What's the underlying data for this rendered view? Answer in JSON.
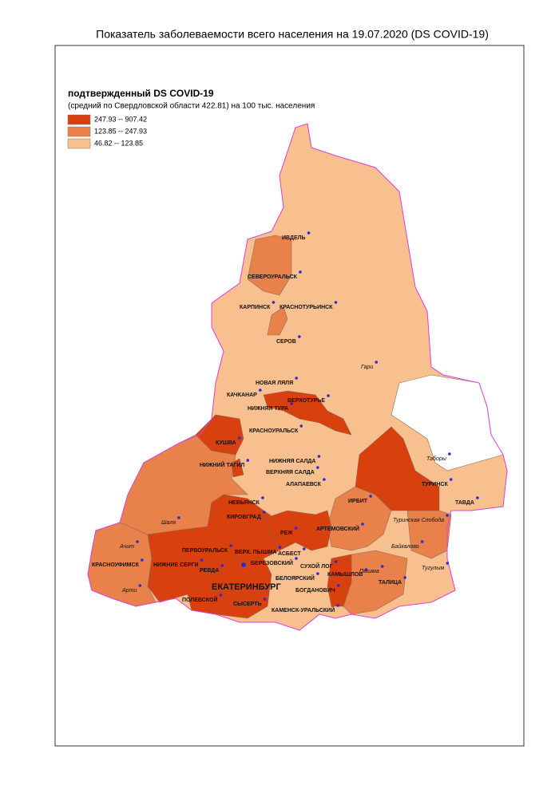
{
  "header": {
    "title": "Показатель заболеваемости всего населения  на 19.07.2020 (DS  COVID-19)"
  },
  "legend": {
    "title": "подтвержденный DS  COVID-19",
    "subtitle": "(средний по Свердловской области 422.81) на 100 тыс. населения",
    "items": [
      {
        "label": "247.93 -- 907.42",
        "color": "#d8400e"
      },
      {
        "label": "123.85 -- 247.93",
        "color": "#e8824a"
      },
      {
        "label": "46.82 -- 123.85",
        "color": "#f9c08f"
      }
    ]
  },
  "places": [
    "ИВДЕЛЬ",
    "СЕВЕРОУРАЛЬСК",
    "КАРПИНСК",
    "КРАСНОТУРЬИНСК",
    "СЕРОВ",
    "Гари",
    "НОВАЯ ЛЯЛЯ",
    "ВЕРХОТУРЬЕ",
    "КАЧКАНАР",
    "НИЖНЯЯ ТУРА",
    "КРАСНОУРАЛЬСК",
    "КУШВА",
    "НИЖНИЙ ТАГИЛ",
    "НИЖНЯЯ САЛДА",
    "ВЕРХНЯЯ САЛДА",
    "Таборы",
    "ТУРИНСК",
    "АЛАПАЕВСК",
    "ТАВДА",
    "НЕВЬЯНСК",
    "КИРОВГРАД",
    "ИРБИТ",
    "Шаля",
    "Туринская Слобода",
    "РЕЖ",
    "АРТЕМОВСКИЙ",
    "Ачит",
    "Байкалово",
    "ПЕРВОУРАЛЬСК",
    "ВЕРХ. ПЫШМА",
    "АСБЕСТ",
    "НИЖНИЕ СЕРГИ",
    "РЕВДА",
    "БЕРЕЗОВСКИЙ",
    "СУХОЙ ЛОГ",
    "КАМЫШЛОВ",
    "Пышма",
    "Тугулым",
    "КРАСНОУФИМСК",
    "БЕЛОЯРСКИЙ",
    "ТАЛИЦА",
    "ЕКАТЕРИНБУРГ",
    "БОГДАНОВИЧ",
    "Арти",
    "ПОЛЕВСКОЙ",
    "СЫСЕРТЬ",
    "КАМЕНСК-УРАЛЬСКИЙ"
  ]
}
